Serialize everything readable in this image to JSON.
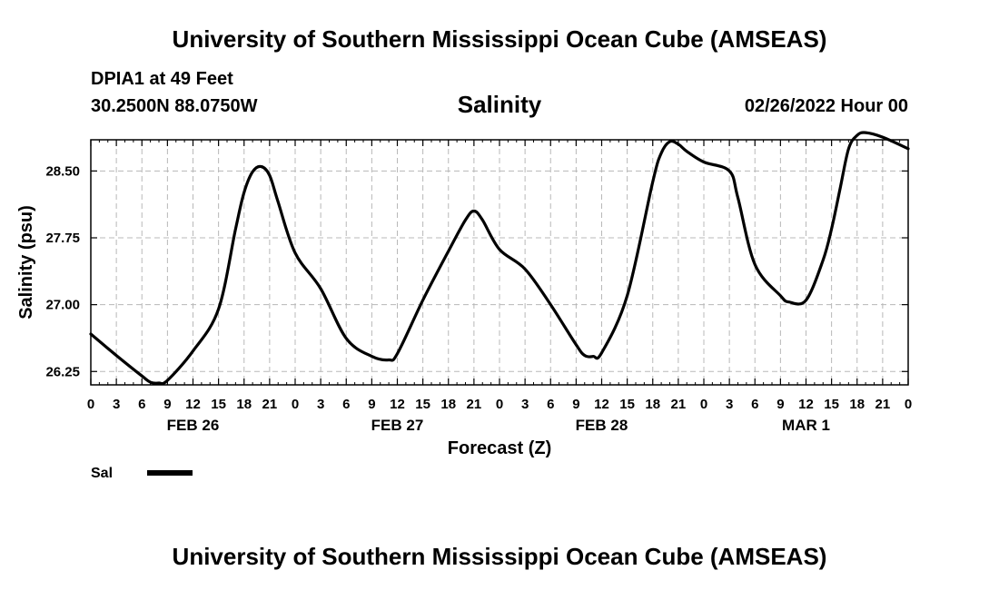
{
  "header": {
    "title": "University of Southern Mississippi Ocean Cube (AMSEAS)",
    "station": "DPIA1 at 49 Feet",
    "coords": "30.2500N  88.0750W",
    "date": "02/26/2022 Hour 00",
    "footer_title": "University of Southern Mississippi Ocean Cube (AMSEAS)"
  },
  "chart_data": {
    "type": "line",
    "title": "Salinity",
    "xlabel": "Forecast (Z)",
    "ylabel": "Salinity (psu)",
    "grid": true,
    "xlim": [
      0,
      96
    ],
    "ylim": [
      26.1,
      28.85
    ],
    "yticks": [
      26.25,
      27.0,
      27.75,
      28.5
    ],
    "ytick_labels": [
      "26.25",
      "27.00",
      "27.75",
      "28.50"
    ],
    "xtick_hours": [
      0,
      3,
      6,
      9,
      12,
      15,
      18,
      21,
      24,
      27,
      30,
      33,
      36,
      39,
      42,
      45,
      48,
      51,
      54,
      57,
      60,
      63,
      66,
      69,
      72,
      75,
      78,
      81,
      84,
      87,
      90,
      93,
      96
    ],
    "xtick_labels": [
      "0",
      "3",
      "6",
      "9",
      "12",
      "15",
      "18",
      "21",
      "0",
      "3",
      "6",
      "9",
      "12",
      "15",
      "18",
      "21",
      "0",
      "3",
      "6",
      "9",
      "12",
      "15",
      "18",
      "21",
      "0",
      "3",
      "6",
      "9",
      "12",
      "15",
      "18",
      "21",
      "0"
    ],
    "date_labels": [
      {
        "hour": 12,
        "label": "FEB 26"
      },
      {
        "hour": 36,
        "label": "FEB 27"
      },
      {
        "hour": 60,
        "label": "FEB 28"
      },
      {
        "hour": 84,
        "label": "MAR 1"
      }
    ],
    "series": [
      {
        "name": "Sal",
        "color": "#000000",
        "x": [
          0,
          3,
          6,
          7,
          8,
          9,
          12,
          15,
          17,
          18,
          19,
          20,
          21,
          22,
          24,
          27,
          30,
          33,
          35,
          36,
          39,
          42,
          44,
          45,
          46,
          48,
          51,
          54,
          57,
          58,
          59,
          60,
          63,
          66,
          67,
          68,
          69,
          70,
          72,
          75,
          76,
          78,
          81,
          82,
          84,
          86,
          87,
          88,
          89,
          90,
          91,
          93,
          96
        ],
        "values": [
          26.67,
          26.43,
          26.2,
          26.13,
          26.12,
          26.15,
          26.48,
          26.95,
          27.85,
          28.26,
          28.49,
          28.55,
          28.45,
          28.15,
          27.58,
          27.18,
          26.62,
          26.42,
          26.38,
          26.45,
          27.05,
          27.6,
          27.95,
          28.05,
          27.95,
          27.62,
          27.4,
          27.0,
          26.55,
          26.43,
          26.42,
          26.46,
          27.1,
          28.38,
          28.7,
          28.83,
          28.8,
          28.72,
          28.6,
          28.5,
          28.2,
          27.45,
          27.1,
          27.03,
          27.05,
          27.5,
          27.85,
          28.3,
          28.75,
          28.9,
          28.93,
          28.88,
          28.75
        ]
      }
    ],
    "legend": [
      {
        "label": "Sal",
        "color": "#000000"
      }
    ]
  }
}
